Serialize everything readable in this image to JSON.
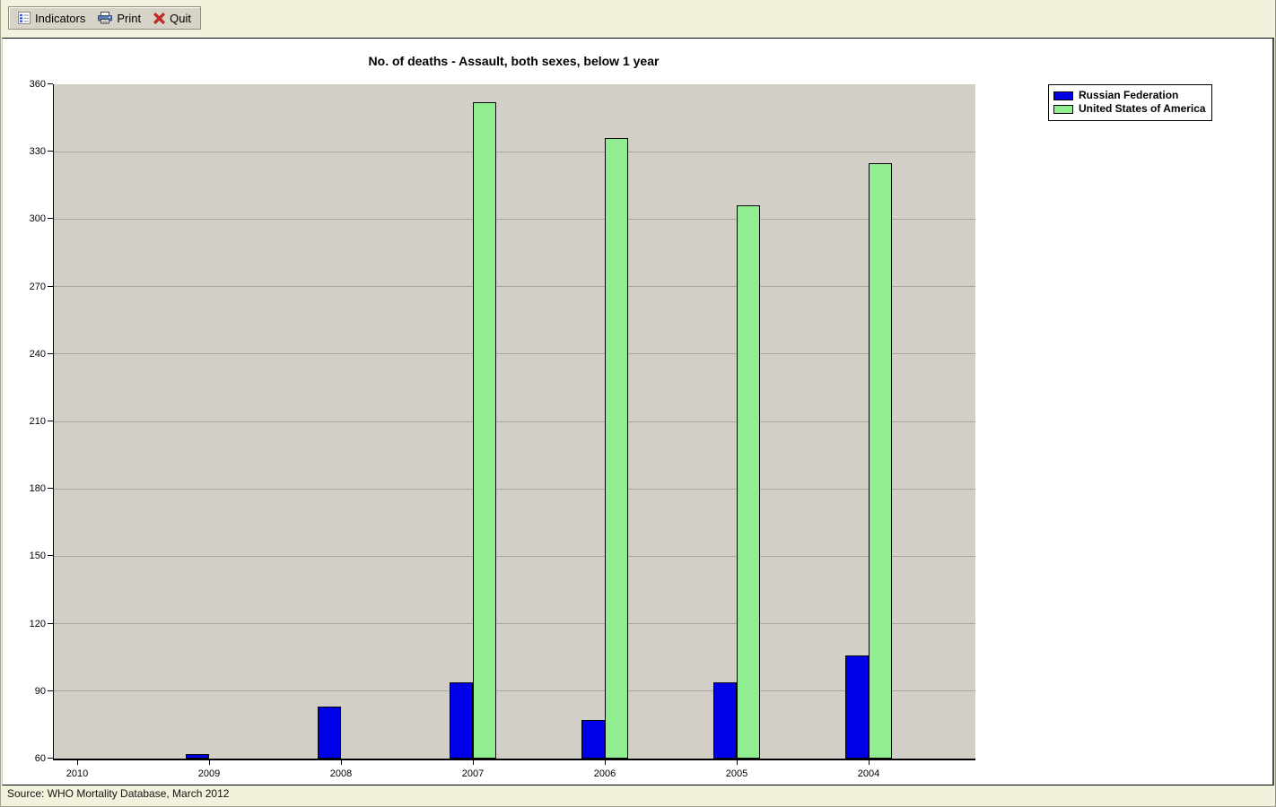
{
  "toolbar": {
    "items": [
      {
        "label": "Indicators",
        "icon": "indicators-icon"
      },
      {
        "label": "Print",
        "icon": "print-icon"
      },
      {
        "label": "Quit",
        "icon": "quit-icon"
      }
    ]
  },
  "chart_data": {
    "type": "bar",
    "title": "No. of deaths - Assault, both sexes, below 1 year",
    "categories": [
      "2010",
      "2009",
      "2008",
      "2007",
      "2006",
      "2005",
      "2004"
    ],
    "series": [
      {
        "name": "Russian Federation",
        "color": "#0000e8",
        "values": [
          null,
          62,
          83,
          94,
          77,
          94,
          106
        ]
      },
      {
        "name": "United States of America",
        "color": "#90ee90",
        "values": [
          null,
          null,
          null,
          352,
          336,
          306,
          325
        ]
      }
    ],
    "xlabel": "",
    "ylabel": "",
    "ylim": [
      60,
      360
    ],
    "ytick_step": 30,
    "grid": true,
    "legend_position": "top-right",
    "plot_bg": "#d2cfc6",
    "gridline_color": "#a6a6a6"
  },
  "footer": {
    "source": "Source: WHO Mortality Database, March 2012"
  },
  "colors": {
    "page_bg": "#f1f1dc",
    "toolbar_bg": "#d7d3c7",
    "panel_bg": "#ffffff",
    "quit_red": "#cf2a27",
    "print_blue": "#5b7fb4"
  }
}
